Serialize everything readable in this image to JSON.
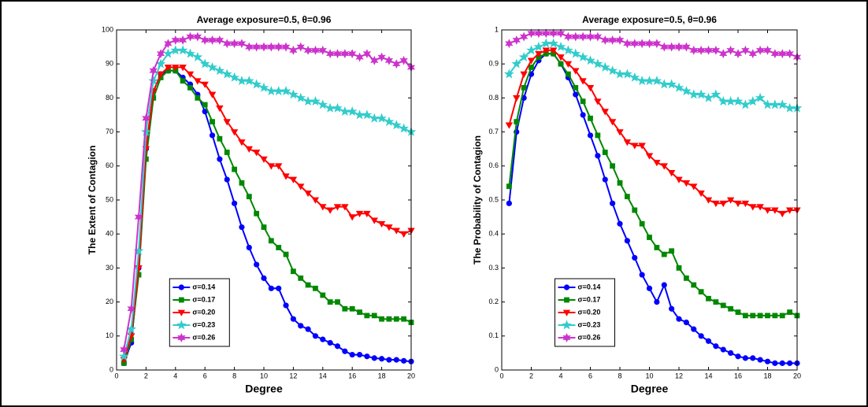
{
  "chart_data": [
    {
      "type": "line",
      "title": "Average exposure=0.5, θ=0.96",
      "xlabel": "Degree",
      "ylabel": "The Extent of Contagion",
      "xlim": [
        0,
        20
      ],
      "xticks": [
        0,
        2,
        4,
        6,
        8,
        10,
        12,
        14,
        16,
        18,
        20
      ],
      "ylim": [
        0,
        100
      ],
      "yticks": [
        0,
        10,
        20,
        30,
        40,
        50,
        60,
        70,
        80,
        90,
        100
      ],
      "legend": "lower left",
      "x": [
        0.5,
        1,
        1.5,
        2,
        2.5,
        3,
        3.5,
        4,
        4.5,
        5,
        5.5,
        6,
        6.5,
        7,
        7.5,
        8,
        8.5,
        9,
        9.5,
        10,
        10.5,
        11,
        11.5,
        12,
        12.5,
        13,
        13.5,
        14,
        14.5,
        15,
        15.5,
        16,
        16.5,
        17,
        17.5,
        18,
        18.5,
        19,
        19.5,
        20
      ],
      "series": [
        {
          "name": "σ=0.14",
          "color": "#0000ff",
          "marker": "o",
          "values": [
            2,
            8,
            30,
            65,
            82,
            87,
            88,
            88,
            86,
            84,
            81,
            76,
            69,
            62,
            56,
            49,
            42,
            36,
            31,
            27,
            24,
            24,
            19,
            15,
            13,
            12,
            10,
            9,
            8,
            7,
            5.5,
            4.5,
            4.5,
            4,
            3.5,
            3.3,
            3,
            3,
            2.7,
            2.5
          ]
        },
        {
          "name": "σ=0.17",
          "color": "#008800",
          "marker": "s",
          "values": [
            2,
            9,
            28,
            62,
            80,
            86,
            88,
            88,
            85,
            83,
            80,
            78,
            73,
            68,
            64,
            59,
            55,
            51,
            46,
            42,
            38,
            36,
            34,
            29,
            27,
            25,
            24,
            22,
            20,
            20,
            18,
            18,
            17,
            16,
            16,
            15,
            15,
            15,
            15,
            14
          ]
        },
        {
          "name": "σ=0.20",
          "color": "#ff0000",
          "marker": "v",
          "values": [
            3,
            10,
            30,
            65,
            82,
            87,
            89,
            89,
            89,
            87,
            85,
            84,
            81,
            77,
            73,
            70,
            67,
            65,
            64,
            62,
            60,
            60,
            57,
            56,
            54,
            52,
            50,
            48,
            47,
            48,
            48,
            45,
            46,
            46,
            44,
            43,
            42,
            41,
            40,
            41
          ]
        },
        {
          "name": "σ=0.23",
          "color": "#33cccc",
          "marker": "*",
          "values": [
            4,
            12,
            35,
            70,
            85,
            90,
            93,
            94,
            94,
            93,
            92,
            90,
            89,
            88,
            87,
            86,
            85,
            85,
            84,
            83,
            82,
            82,
            82,
            81,
            80,
            79,
            79,
            78,
            77,
            77,
            76,
            76,
            75,
            75,
            74,
            74,
            73,
            72,
            71,
            70
          ]
        },
        {
          "name": "σ=0.26",
          "color": "#cc33cc",
          "marker": "h",
          "values": [
            6,
            18,
            45,
            74,
            88,
            93,
            96,
            97,
            97,
            98,
            98,
            97,
            97,
            97,
            96,
            96,
            96,
            95,
            95,
            95,
            95,
            95,
            95,
            94,
            95,
            94,
            94,
            94,
            93,
            93,
            93,
            93,
            92,
            93,
            91,
            92,
            91,
            90,
            91,
            89
          ]
        }
      ]
    },
    {
      "type": "line",
      "title": "Average exposure=0.5, θ=0.96",
      "xlabel": "Degree",
      "ylabel": "The Probability of Contagion",
      "xlim": [
        0,
        20
      ],
      "xticks": [
        0,
        2,
        4,
        6,
        8,
        10,
        12,
        14,
        16,
        18,
        20
      ],
      "ylim": [
        0,
        1
      ],
      "yticks": [
        0,
        0.1,
        0.2,
        0.3,
        0.4,
        0.5,
        0.6,
        0.7,
        0.8,
        0.9,
        1
      ],
      "legend": "lower left",
      "x": [
        0.5,
        1,
        1.5,
        2,
        2.5,
        3,
        3.5,
        4,
        4.5,
        5,
        5.5,
        6,
        6.5,
        7,
        7.5,
        8,
        8.5,
        9,
        9.5,
        10,
        10.5,
        11,
        11.5,
        12,
        12.5,
        13,
        13.5,
        14,
        14.5,
        15,
        15.5,
        16,
        16.5,
        17,
        17.5,
        18,
        18.5,
        19,
        19.5,
        20
      ],
      "series": [
        {
          "name": "σ=0.14",
          "color": "#0000ff",
          "marker": "o",
          "values": [
            0.49,
            0.7,
            0.8,
            0.87,
            0.91,
            0.93,
            0.93,
            0.9,
            0.86,
            0.81,
            0.75,
            0.69,
            0.63,
            0.56,
            0.49,
            0.43,
            0.38,
            0.33,
            0.28,
            0.24,
            0.2,
            0.25,
            0.18,
            0.15,
            0.14,
            0.12,
            0.1,
            0.085,
            0.07,
            0.06,
            0.05,
            0.04,
            0.035,
            0.035,
            0.03,
            0.025,
            0.02,
            0.02,
            0.02,
            0.02
          ]
        },
        {
          "name": "σ=0.17",
          "color": "#008800",
          "marker": "s",
          "values": [
            0.54,
            0.73,
            0.83,
            0.89,
            0.92,
            0.93,
            0.93,
            0.9,
            0.87,
            0.83,
            0.79,
            0.74,
            0.69,
            0.64,
            0.6,
            0.55,
            0.51,
            0.47,
            0.43,
            0.39,
            0.36,
            0.34,
            0.35,
            0.3,
            0.27,
            0.25,
            0.23,
            0.21,
            0.2,
            0.19,
            0.18,
            0.17,
            0.16,
            0.16,
            0.16,
            0.16,
            0.16,
            0.16,
            0.17,
            0.16
          ]
        },
        {
          "name": "σ=0.20",
          "color": "#ff0000",
          "marker": "v",
          "values": [
            0.72,
            0.8,
            0.87,
            0.91,
            0.93,
            0.94,
            0.94,
            0.92,
            0.9,
            0.88,
            0.85,
            0.83,
            0.79,
            0.76,
            0.73,
            0.7,
            0.67,
            0.66,
            0.66,
            0.63,
            0.61,
            0.6,
            0.58,
            0.56,
            0.55,
            0.54,
            0.52,
            0.5,
            0.49,
            0.49,
            0.5,
            0.49,
            0.49,
            0.48,
            0.48,
            0.47,
            0.47,
            0.46,
            0.47,
            0.47
          ]
        },
        {
          "name": "σ=0.23",
          "color": "#33cccc",
          "marker": "*",
          "values": [
            0.87,
            0.9,
            0.92,
            0.94,
            0.95,
            0.96,
            0.96,
            0.95,
            0.94,
            0.93,
            0.92,
            0.91,
            0.9,
            0.89,
            0.88,
            0.87,
            0.87,
            0.86,
            0.85,
            0.85,
            0.85,
            0.84,
            0.84,
            0.83,
            0.82,
            0.81,
            0.81,
            0.8,
            0.81,
            0.79,
            0.79,
            0.79,
            0.78,
            0.79,
            0.8,
            0.78,
            0.78,
            0.78,
            0.77,
            0.77
          ]
        },
        {
          "name": "σ=0.26",
          "color": "#cc33cc",
          "marker": "h",
          "values": [
            0.96,
            0.97,
            0.98,
            0.99,
            0.99,
            0.99,
            0.99,
            0.99,
            0.98,
            0.98,
            0.98,
            0.98,
            0.98,
            0.97,
            0.97,
            0.97,
            0.96,
            0.96,
            0.96,
            0.96,
            0.96,
            0.95,
            0.95,
            0.95,
            0.95,
            0.94,
            0.94,
            0.94,
            0.94,
            0.93,
            0.94,
            0.93,
            0.94,
            0.93,
            0.94,
            0.94,
            0.93,
            0.93,
            0.93,
            0.92
          ]
        }
      ]
    }
  ]
}
